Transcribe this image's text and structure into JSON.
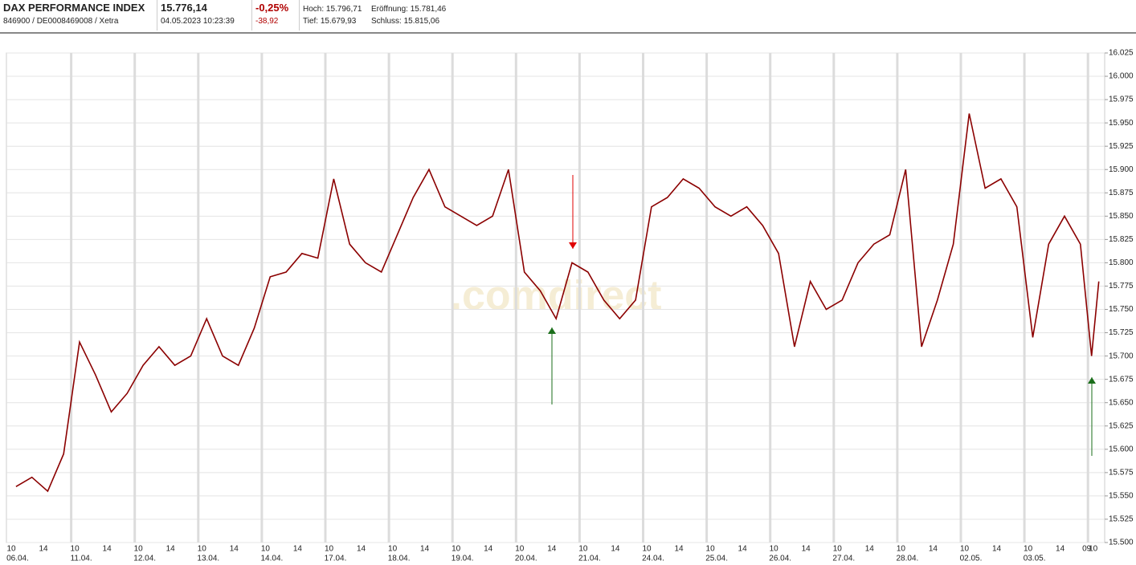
{
  "header": {
    "name": "DAX PERFORMANCE INDEX",
    "price": "15.776,14",
    "change_pct": "-0,25%",
    "high": "Hoch: 15.796,71",
    "open": "Eröffnung: 15.781,46",
    "ids": "846900 / DE0008469008 / Xetra",
    "timestamp": "04.05.2023 10:23:39",
    "change_abs": "-38,92",
    "low": "Tief: 15.679,93",
    "close": "Schluss: 15.815,06"
  },
  "chart_data": {
    "type": "line",
    "watermark": ".comdirect",
    "days": [
      {
        "date": "06.04.",
        "hours": [
          "10",
          "14"
        ]
      },
      {
        "date": "11.04.",
        "hours": [
          "10",
          "14"
        ]
      },
      {
        "date": "12.04.",
        "hours": [
          "10",
          "14"
        ]
      },
      {
        "date": "13.04.",
        "hours": [
          "10",
          "14"
        ]
      },
      {
        "date": "14.04.",
        "hours": [
          "10",
          "14"
        ]
      },
      {
        "date": "17.04.",
        "hours": [
          "10",
          "14"
        ]
      },
      {
        "date": "18.04.",
        "hours": [
          "10",
          "14"
        ]
      },
      {
        "date": "19.04.",
        "hours": [
          "10",
          "14"
        ]
      },
      {
        "date": "20.04.",
        "hours": [
          "10",
          "14"
        ]
      },
      {
        "date": "21.04.",
        "hours": [
          "10",
          "14"
        ]
      },
      {
        "date": "24.04.",
        "hours": [
          "10",
          "14"
        ]
      },
      {
        "date": "25.04.",
        "hours": [
          "10",
          "14"
        ]
      },
      {
        "date": "26.04.",
        "hours": [
          "10",
          "14"
        ]
      },
      {
        "date": "27.04.",
        "hours": [
          "10",
          "14"
        ]
      },
      {
        "date": "28.04.",
        "hours": [
          "10",
          "14"
        ]
      },
      {
        "date": "02.05.",
        "hours": [
          "10",
          "14"
        ]
      },
      {
        "date": "03.05.",
        "hours": [
          "10",
          "14"
        ]
      },
      {
        "hours": [
          "09",
          "10"
        ]
      }
    ],
    "series": [
      {
        "color": "#8b0000",
        "values": [
          15560,
          15570,
          15555,
          15595,
          15715,
          15680,
          15640,
          15660,
          15690,
          15710,
          15690,
          15700,
          15740,
          15700,
          15690,
          15730,
          15785,
          15790,
          15810,
          15805,
          15890,
          15820,
          15800,
          15790,
          15830,
          15870,
          15900,
          15860,
          15850,
          15840,
          15850,
          15900,
          15790,
          15770,
          15740,
          15800,
          15790,
          15760,
          15740,
          15760,
          15860,
          15870,
          15890,
          15880,
          15860,
          15850,
          15860,
          15840,
          15810,
          15710,
          15780,
          15750,
          15760,
          15800,
          15820,
          15830,
          15900,
          15710,
          15760,
          15820,
          15960,
          15880,
          15890,
          15860,
          15720,
          15820,
          15850,
          15820,
          15700,
          15780
        ]
      }
    ],
    "ylim": [
      15500,
      16025
    ],
    "yticks": [
      {
        "value": 15500,
        "label": "15.500"
      },
      {
        "value": 15525,
        "label": "15.525"
      },
      {
        "value": 15550,
        "label": "15.550"
      },
      {
        "value": 15575,
        "label": "15.575"
      },
      {
        "value": 15600,
        "label": "15.600"
      },
      {
        "value": 15625,
        "label": "15.625"
      },
      {
        "value": 15650,
        "label": "15.650"
      },
      {
        "value": 15675,
        "label": "15.675"
      },
      {
        "value": 15700,
        "label": "15.700"
      },
      {
        "value": 15725,
        "label": "15.725"
      },
      {
        "value": 15750,
        "label": "15.750"
      },
      {
        "value": 15775,
        "label": "15.775"
      },
      {
        "value": 15800,
        "label": "15.800"
      },
      {
        "value": 15825,
        "label": "15.825"
      },
      {
        "value": 15850,
        "label": "15.850"
      },
      {
        "value": 15875,
        "label": "15.875"
      },
      {
        "value": 15900,
        "label": "15.900"
      },
      {
        "value": 15925,
        "label": "15.925"
      },
      {
        "value": 15950,
        "label": "15.950"
      },
      {
        "value": 15975,
        "label": "15.975"
      },
      {
        "value": 16000,
        "label": "16.000"
      },
      {
        "value": 16025,
        "label": "16.025"
      }
    ],
    "grid": true
  }
}
